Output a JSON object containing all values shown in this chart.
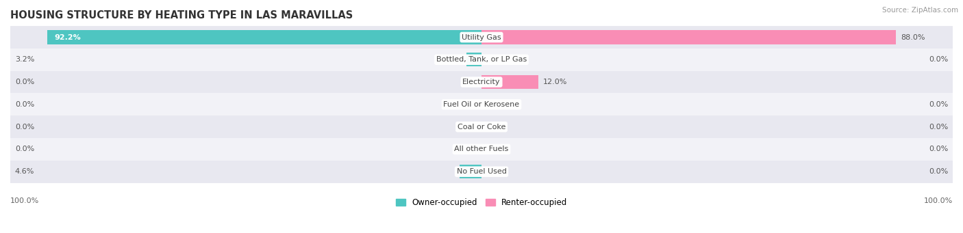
{
  "title": "HOUSING STRUCTURE BY HEATING TYPE IN LAS MARAVILLAS",
  "source": "Source: ZipAtlas.com",
  "categories": [
    "Utility Gas",
    "Bottled, Tank, or LP Gas",
    "Electricity",
    "Fuel Oil or Kerosene",
    "Coal or Coke",
    "All other Fuels",
    "No Fuel Used"
  ],
  "owner_values": [
    92.2,
    3.2,
    0.0,
    0.0,
    0.0,
    0.0,
    4.6
  ],
  "renter_values": [
    88.0,
    0.0,
    12.0,
    0.0,
    0.0,
    0.0,
    0.0
  ],
  "owner_color": "#4ec5c1",
  "renter_color": "#f98db5",
  "row_colors": [
    "#e8e8f0",
    "#f2f2f7"
  ],
  "max_value": 100.0,
  "title_fontsize": 10.5,
  "label_fontsize": 8,
  "tick_fontsize": 8,
  "legend_fontsize": 8.5,
  "source_fontsize": 7.5
}
